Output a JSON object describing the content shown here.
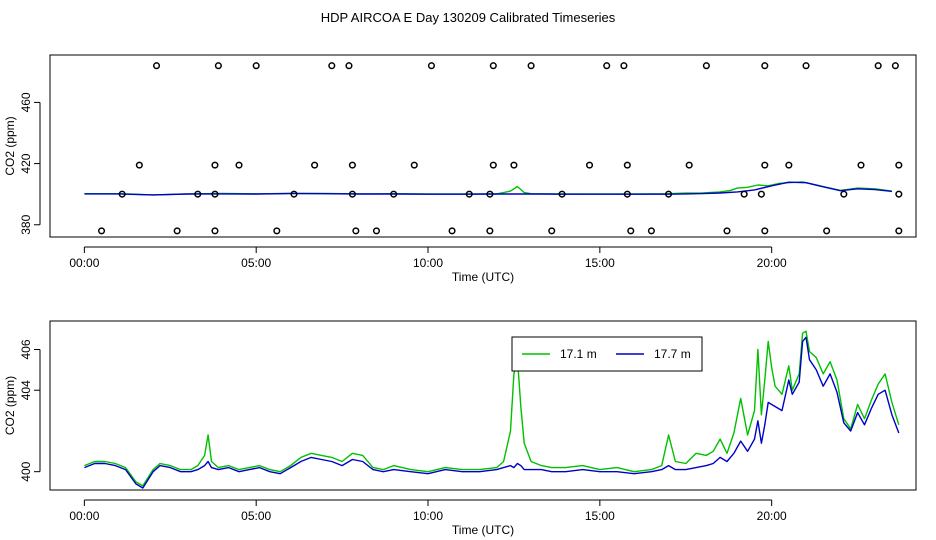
{
  "title": "HDP AIRCOA E  Day 130209  Calibrated Timeseries",
  "colors": {
    "green": "#00c000",
    "blue": "#0000c8",
    "axis": "#000000"
  },
  "chart_data": [
    {
      "type": "line",
      "xlabel": "Time (UTC)",
      "ylabel": "CO2 (ppm)",
      "xlim": [
        -1,
        24.2
      ],
      "ylim": [
        372,
        491
      ],
      "xticks": [
        {
          "v": 0,
          "label": "00:00"
        },
        {
          "v": 5,
          "label": "05:00"
        },
        {
          "v": 10,
          "label": "10:00"
        },
        {
          "v": 15,
          "label": "15:00"
        },
        {
          "v": 20,
          "label": "20:00"
        }
      ],
      "yticks": [
        {
          "v": 380,
          "label": "380"
        },
        {
          "v": 420,
          "label": "420"
        },
        {
          "v": 460,
          "label": "460"
        }
      ],
      "series": [
        {
          "name": "17.1 m",
          "color": "#00c000",
          "x": [
            0,
            1,
            2,
            3,
            4,
            5,
            6,
            7,
            8,
            9,
            10,
            11,
            12,
            12.4,
            12.6,
            12.8,
            13,
            14,
            15,
            16,
            17,
            17.5,
            18,
            18.5,
            18.8,
            19,
            19.3,
            19.6,
            19.9,
            20.2,
            20.5,
            20.9,
            21.2,
            21.5,
            22,
            22.5,
            23,
            23.5
          ],
          "y": [
            400.3,
            400.3,
            399.5,
            400.2,
            400.5,
            400.2,
            400.6,
            400.5,
            400.2,
            400.3,
            400.1,
            400.1,
            400.2,
            402,
            405,
            401,
            400.3,
            400.1,
            400.2,
            400.1,
            400.3,
            400.7,
            400.8,
            401.5,
            402.5,
            404,
            404.5,
            406,
            405.5,
            407,
            407.5,
            408,
            406.5,
            405,
            402.5,
            404,
            403.5,
            402
          ]
        },
        {
          "name": "17.7 m",
          "color": "#0000c8",
          "x": [
            0,
            1,
            2,
            3,
            4,
            5,
            6,
            7,
            8,
            9,
            10,
            11,
            12,
            13,
            14,
            15,
            16,
            17,
            17.5,
            18,
            18.5,
            19,
            19.5,
            20,
            20.5,
            21,
            21.5,
            22,
            22.5,
            23,
            23.5
          ],
          "y": [
            400.2,
            400.2,
            399.5,
            400.1,
            400.2,
            400.1,
            400.4,
            400.3,
            400.1,
            400.1,
            400,
            400,
            400.1,
            400.1,
            400,
            400,
            400,
            400,
            400.2,
            400.4,
            400.8,
            401.5,
            402.8,
            405.5,
            407.8,
            407.5,
            404.8,
            402.3,
            403.5,
            403,
            401.8
          ]
        }
      ],
      "points": [
        [
          0.5,
          376
        ],
        [
          2.1,
          484
        ],
        [
          2.7,
          376
        ],
        [
          3.8,
          376
        ],
        [
          3.9,
          484
        ],
        [
          5.0,
          484
        ],
        [
          5.6,
          376
        ],
        [
          7.2,
          484
        ],
        [
          7.7,
          484
        ],
        [
          7.9,
          376
        ],
        [
          8.5,
          376
        ],
        [
          10.1,
          484
        ],
        [
          10.7,
          376
        ],
        [
          11.8,
          376
        ],
        [
          11.9,
          484
        ],
        [
          13.0,
          484
        ],
        [
          13.6,
          376
        ],
        [
          15.2,
          484
        ],
        [
          15.7,
          484
        ],
        [
          15.9,
          376
        ],
        [
          16.5,
          376
        ],
        [
          18.1,
          484
        ],
        [
          18.7,
          376
        ],
        [
          19.8,
          376
        ],
        [
          19.8,
          484
        ],
        [
          21.0,
          484
        ],
        [
          21.6,
          376
        ],
        [
          23.1,
          484
        ],
        [
          23.6,
          484
        ],
        [
          23.7,
          376
        ],
        [
          1.1,
          400
        ],
        [
          3.3,
          400
        ],
        [
          3.8,
          400
        ],
        [
          6.1,
          400
        ],
        [
          7.8,
          400
        ],
        [
          9.0,
          400
        ],
        [
          11.2,
          400
        ],
        [
          11.8,
          400
        ],
        [
          13.9,
          400
        ],
        [
          15.8,
          400
        ],
        [
          17.0,
          400
        ],
        [
          19.2,
          400
        ],
        [
          19.7,
          400
        ],
        [
          22.1,
          400
        ],
        [
          23.7,
          400
        ],
        [
          1.6,
          419
        ],
        [
          3.8,
          419
        ],
        [
          4.5,
          419
        ],
        [
          6.7,
          419
        ],
        [
          7.8,
          419
        ],
        [
          9.6,
          419
        ],
        [
          11.9,
          419
        ],
        [
          12.5,
          419
        ],
        [
          14.7,
          419
        ],
        [
          15.8,
          419
        ],
        [
          17.6,
          419
        ],
        [
          19.8,
          419
        ],
        [
          20.5,
          419
        ],
        [
          22.6,
          419
        ],
        [
          23.7,
          419
        ]
      ]
    },
    {
      "type": "line",
      "xlabel": "Time (UTC)",
      "ylabel": "CO2 (ppm)",
      "xlim": [
        -1,
        24.2
      ],
      "ylim": [
        399.1,
        407.4
      ],
      "xticks": [
        {
          "v": 0,
          "label": "00:00"
        },
        {
          "v": 5,
          "label": "05:00"
        },
        {
          "v": 10,
          "label": "10:00"
        },
        {
          "v": 15,
          "label": "15:00"
        },
        {
          "v": 20,
          "label": "20:00"
        }
      ],
      "yticks": [
        {
          "v": 400,
          "label": "400"
        },
        {
          "v": 404,
          "label": "404"
        },
        {
          "v": 406,
          "label": "406"
        }
      ],
      "legend": "top-right",
      "series": [
        {
          "name": "17.1 m",
          "color": "#00c000",
          "x": [
            0,
            0.3,
            0.6,
            0.9,
            1.2,
            1.5,
            1.7,
            2.0,
            2.2,
            2.5,
            2.8,
            3.1,
            3.3,
            3.5,
            3.6,
            3.7,
            3.9,
            4.2,
            4.5,
            4.8,
            5.1,
            5.4,
            5.7,
            6.0,
            6.3,
            6.6,
            6.9,
            7.2,
            7.5,
            7.8,
            8.1,
            8.4,
            8.7,
            9.0,
            9.5,
            10.0,
            10.5,
            11.0,
            11.5,
            12.0,
            12.2,
            12.4,
            12.5,
            12.6,
            12.7,
            12.8,
            13.0,
            13.3,
            13.6,
            14.0,
            14.5,
            15.0,
            15.5,
            16.0,
            16.5,
            16.8,
            17.0,
            17.2,
            17.5,
            17.8,
            18.1,
            18.3,
            18.5,
            18.7,
            18.9,
            19.1,
            19.3,
            19.5,
            19.6,
            19.7,
            19.8,
            19.9,
            20.0,
            20.1,
            20.3,
            20.5,
            20.6,
            20.8,
            20.9,
            21.0,
            21.1,
            21.3,
            21.5,
            21.7,
            21.9,
            22.1,
            22.3,
            22.5,
            22.7,
            22.9,
            23.1,
            23.3,
            23.5,
            23.7
          ],
          "y": [
            400.3,
            400.5,
            400.5,
            400.4,
            400.2,
            399.5,
            399.3,
            400.1,
            400.4,
            400.3,
            400.1,
            400.1,
            400.3,
            400.8,
            401.8,
            400.5,
            400.2,
            400.3,
            400.1,
            400.2,
            400.3,
            400.1,
            400.0,
            400.3,
            400.7,
            400.9,
            400.8,
            400.7,
            400.5,
            400.9,
            400.8,
            400.2,
            400.1,
            400.3,
            400.1,
            400.0,
            400.2,
            400.1,
            400.1,
            400.2,
            400.5,
            402.0,
            404.8,
            405.6,
            403.2,
            401.4,
            400.5,
            400.3,
            400.2,
            400.2,
            400.3,
            400.1,
            400.2,
            400.0,
            400.1,
            400.3,
            401.8,
            400.5,
            400.4,
            400.9,
            400.8,
            401.0,
            401.6,
            400.9,
            401.9,
            403.6,
            401.8,
            403.0,
            406.0,
            402.8,
            404.5,
            406.4,
            405.1,
            404.2,
            403.8,
            405.2,
            404.0,
            404.8,
            406.8,
            406.9,
            405.9,
            405.6,
            404.8,
            405.4,
            404.5,
            402.6,
            402.1,
            403.3,
            402.6,
            403.5,
            404.3,
            404.8,
            403.4,
            402.3
          ]
        },
        {
          "name": "17.7 m",
          "color": "#0000c8",
          "x": [
            0,
            0.3,
            0.6,
            0.9,
            1.2,
            1.5,
            1.7,
            2.0,
            2.2,
            2.5,
            2.8,
            3.1,
            3.3,
            3.5,
            3.6,
            3.7,
            3.9,
            4.2,
            4.5,
            4.8,
            5.1,
            5.4,
            5.7,
            6.0,
            6.3,
            6.6,
            6.9,
            7.2,
            7.5,
            7.8,
            8.1,
            8.4,
            8.7,
            9.0,
            9.5,
            10.0,
            10.5,
            11.0,
            11.5,
            12.0,
            12.2,
            12.4,
            12.5,
            12.6,
            12.7,
            12.8,
            13.0,
            13.3,
            13.6,
            14.0,
            14.5,
            15.0,
            15.5,
            16.0,
            16.5,
            16.8,
            17.0,
            17.2,
            17.5,
            17.8,
            18.1,
            18.3,
            18.5,
            18.7,
            18.9,
            19.1,
            19.3,
            19.5,
            19.6,
            19.7,
            19.8,
            19.9,
            20.0,
            20.1,
            20.3,
            20.5,
            20.6,
            20.8,
            20.9,
            21.0,
            21.1,
            21.3,
            21.5,
            21.7,
            21.9,
            22.1,
            22.3,
            22.5,
            22.7,
            22.9,
            23.1,
            23.3,
            23.5,
            23.7
          ],
          "y": [
            400.2,
            400.4,
            400.4,
            400.3,
            400.1,
            399.4,
            399.2,
            400.0,
            400.3,
            400.2,
            400.0,
            400.0,
            400.1,
            400.3,
            400.5,
            400.2,
            400.1,
            400.2,
            400.0,
            400.1,
            400.2,
            400.0,
            399.9,
            400.2,
            400.5,
            400.7,
            400.6,
            400.5,
            400.3,
            400.6,
            400.5,
            400.1,
            400.0,
            400.1,
            400.0,
            399.9,
            400.1,
            400.0,
            400.0,
            400.1,
            400.2,
            400.3,
            400.2,
            400.4,
            400.3,
            400.1,
            400.1,
            400.1,
            400.0,
            400.0,
            400.1,
            400.0,
            400.0,
            399.9,
            400.0,
            400.1,
            400.3,
            400.1,
            400.1,
            400.2,
            400.3,
            400.4,
            400.7,
            400.5,
            400.9,
            401.5,
            401.0,
            401.6,
            402.5,
            401.4,
            402.3,
            403.4,
            403.3,
            403.2,
            403.0,
            404.5,
            403.8,
            404.4,
            406.4,
            406.6,
            405.5,
            405.0,
            404.2,
            404.8,
            403.9,
            402.4,
            402.0,
            402.9,
            402.3,
            403.1,
            403.8,
            404.0,
            402.8,
            401.9
          ]
        }
      ]
    }
  ]
}
